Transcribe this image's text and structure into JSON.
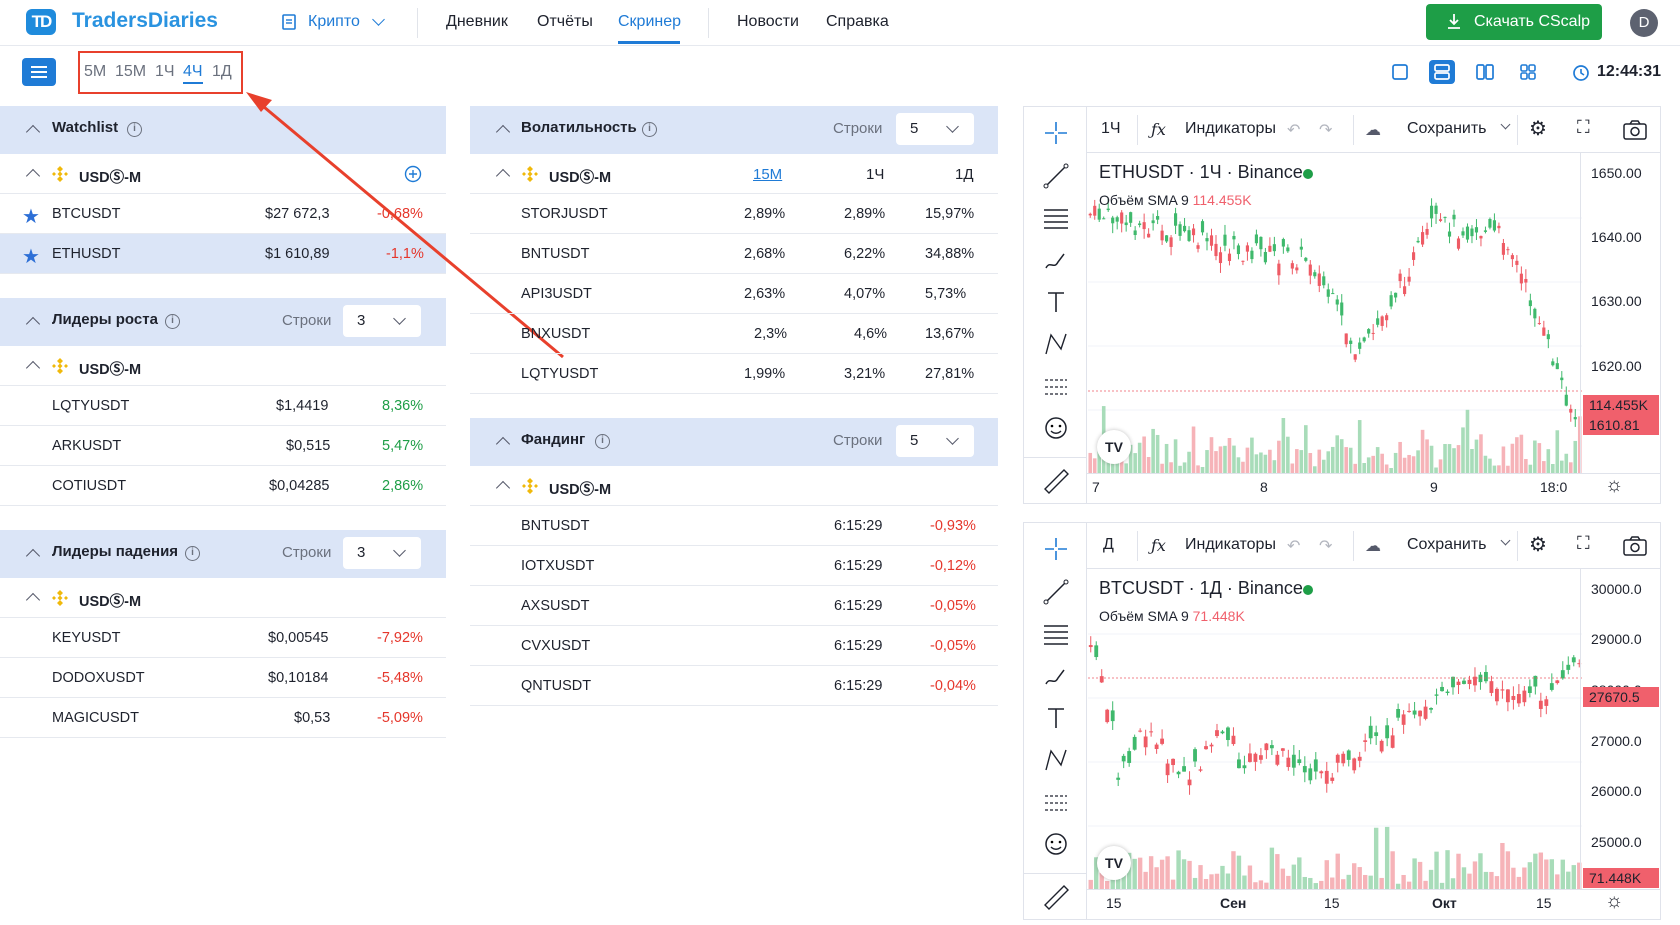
{
  "app": {
    "brand": "TradersDiaries",
    "brand_mark": "TD",
    "avatar_letter": "D",
    "download_label": "Скачать CScalp",
    "time": "12:44:31"
  },
  "nav": {
    "krypto": "Крипто",
    "items": [
      "Дневник",
      "Отчёты",
      "Скринер",
      "Новости",
      "Справка"
    ],
    "active": "Скринер"
  },
  "timeframes": {
    "items": [
      "5М",
      "15М",
      "1Ч",
      "4Ч",
      "1Д"
    ],
    "active": "4Ч"
  },
  "watchlist": {
    "title": "Watchlist",
    "group": "USDⓈ-M",
    "rows": [
      {
        "symbol": "BTCUSDT",
        "price": "$27 672,3",
        "change": "-0,68%"
      },
      {
        "symbol": "ETHUSDT",
        "price": "$1 610,89",
        "change": "-1,1%"
      }
    ]
  },
  "gainers": {
    "title": "Лидеры роста",
    "rows_label": "Строки",
    "rows_value": "3",
    "group": "USDⓈ-M",
    "rows": [
      {
        "symbol": "LQTYUSDT",
        "price": "$1,4419",
        "change": "8,36%"
      },
      {
        "symbol": "ARKUSDT",
        "price": "$0,515",
        "change": "5,47%"
      },
      {
        "symbol": "COTIUSDT",
        "price": "$0,04285",
        "change": "2,86%"
      }
    ]
  },
  "losers": {
    "title": "Лидеры падения",
    "rows_label": "Строки",
    "rows_value": "3",
    "group": "USDⓈ-M",
    "rows": [
      {
        "symbol": "KEYUSDT",
        "price": "$0,00545",
        "change": "-7,92%"
      },
      {
        "symbol": "DODOXUSDT",
        "price": "$0,10184",
        "change": "-5,48%"
      },
      {
        "symbol": "MAGICUSDT",
        "price": "$0,53",
        "change": "-5,09%"
      }
    ]
  },
  "volatility": {
    "title": "Волатильность",
    "rows_label": "Строки",
    "rows_value": "5",
    "group": "USDⓈ-M",
    "cols": [
      "15М",
      "1Ч",
      "1Д"
    ],
    "rows": [
      {
        "symbol": "STORJUSDT",
        "v": [
          "2,89%",
          "2,89%",
          "15,97%"
        ]
      },
      {
        "symbol": "BNTUSDT",
        "v": [
          "2,68%",
          "6,22%",
          "34,88%"
        ]
      },
      {
        "symbol": "API3USDT",
        "v": [
          "2,63%",
          "4,07%",
          "5,73%"
        ]
      },
      {
        "symbol": "BNXUSDT",
        "v": [
          "2,3%",
          "4,6%",
          "13,67%"
        ]
      },
      {
        "symbol": "LQTYUSDT",
        "v": [
          "1,99%",
          "3,21%",
          "27,81%"
        ]
      }
    ]
  },
  "funding": {
    "title": "Фандинг",
    "rows_label": "Строки",
    "rows_value": "5",
    "group": "USDⓈ-M",
    "rows": [
      {
        "symbol": "BNTUSDT",
        "time": "6:15:29",
        "rate": "-0,93%"
      },
      {
        "symbol": "IOTXUSDT",
        "time": "6:15:29",
        "rate": "-0,12%"
      },
      {
        "symbol": "AXSUSDT",
        "time": "6:15:29",
        "rate": "-0,05%"
      },
      {
        "symbol": "CVXUSDT",
        "time": "6:15:29",
        "rate": "-0,05%"
      },
      {
        "symbol": "QNTUSDT",
        "time": "6:15:29",
        "rate": "-0,04%"
      }
    ]
  },
  "chart1": {
    "interval": "1Ч",
    "indicators": "Индикаторы",
    "save": "Сохранить",
    "title": "ETHUSDT · 1Ч · Binance",
    "volume_label": "Объём SMA 9",
    "volume_value": "114.455K",
    "prices": [
      "1650.00",
      "1640.00",
      "1630.00",
      "1620.00"
    ],
    "tag_vol": "114.455K",
    "tag_price": "1610.81",
    "x_labels": [
      "7",
      "8",
      "9",
      "18:0"
    ],
    "ymin": 1608,
    "ymax": 1652
  },
  "chart2": {
    "interval": "Д",
    "indicators": "Индикаторы",
    "save": "Сохранить",
    "title": "BTCUSDT · 1Д · Binance",
    "volume_label": "Объём SMA 9",
    "volume_value": "71.448K",
    "prices": [
      "30000.0",
      "29000.0",
      "28000.0",
      "27000.0",
      "26000.0",
      "25000.0"
    ],
    "tag_price": "27670.5",
    "tag_vol": "71.448K",
    "x_labels": [
      "15",
      "Сен",
      "15",
      "Окт",
      "15"
    ],
    "ymin": 24400,
    "ymax": 30200
  },
  "colors": {
    "accent": "#1f7bd6",
    "green": "#1e9e47",
    "red": "#e5362b",
    "panel": "#dbe5f7",
    "annotation": "#e8402c"
  }
}
